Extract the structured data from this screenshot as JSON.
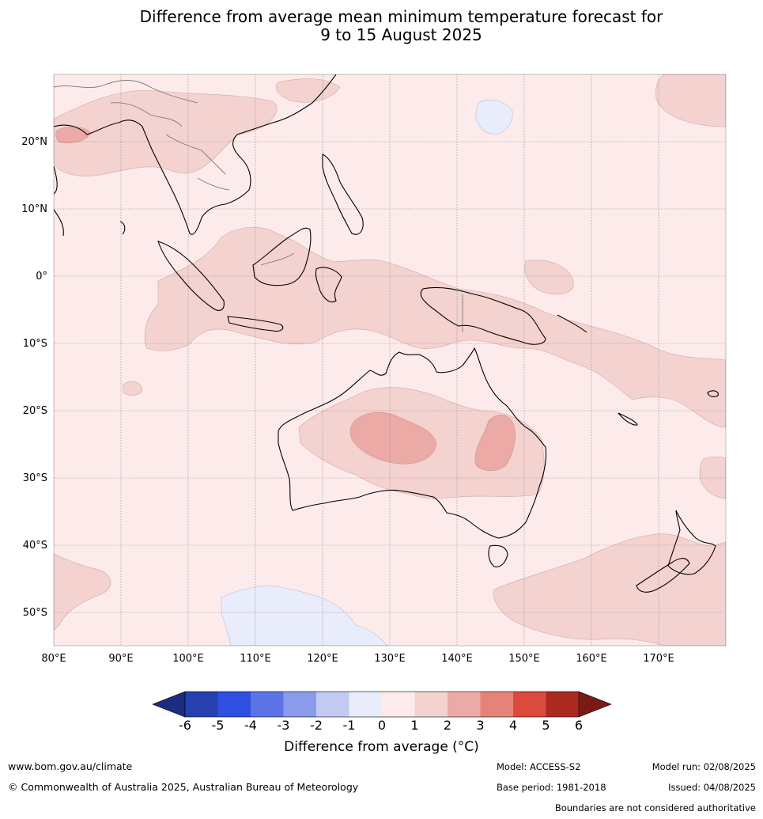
{
  "title": {
    "line1": "Difference from average mean minimum temperature forecast for",
    "line2": "9 to 15 August 2025"
  },
  "map": {
    "lon_range": [
      80,
      180
    ],
    "lat_range": [
      -55,
      30
    ],
    "lon_ticks": [
      "80°E",
      "90°E",
      "100°E",
      "110°E",
      "120°E",
      "130°E",
      "140°E",
      "150°E",
      "160°E",
      "170°E"
    ],
    "lat_ticks": [
      "20°N",
      "10°N",
      "0°",
      "10°S",
      "20°S",
      "30°S",
      "40°S",
      "50°S"
    ],
    "background_anomaly_class": "0 to 1"
  },
  "colorbar": {
    "labels": [
      "-6",
      "-5",
      "-4",
      "-3",
      "-2",
      "-1",
      "0",
      "1",
      "2",
      "3",
      "4",
      "5",
      "6"
    ],
    "colors": [
      "#2640b0",
      "#2f4fe0",
      "#5c73e6",
      "#8a9bec",
      "#c2caf3",
      "#e8ecfb",
      "#fcebea",
      "#f4d2d0",
      "#ebaaa5",
      "#e68378",
      "#dc4a3e",
      "#ac2a22"
    ],
    "under_color": "#1c2c80",
    "over_color": "#7a1a16",
    "title": "Difference from average (°C)"
  },
  "footer": {
    "url": "www.bom.gov.au/climate",
    "copyright": "© Commonwealth of Australia 2025, Australian Bureau of Meteorology",
    "model": "Model: ACCESS-S2",
    "base_period": "Base period: 1981-2018",
    "model_run": "Model run: 02/08/2025",
    "issued": "Issued: 04/08/2025",
    "disclaimer": "Boundaries are not considered authoritative"
  }
}
